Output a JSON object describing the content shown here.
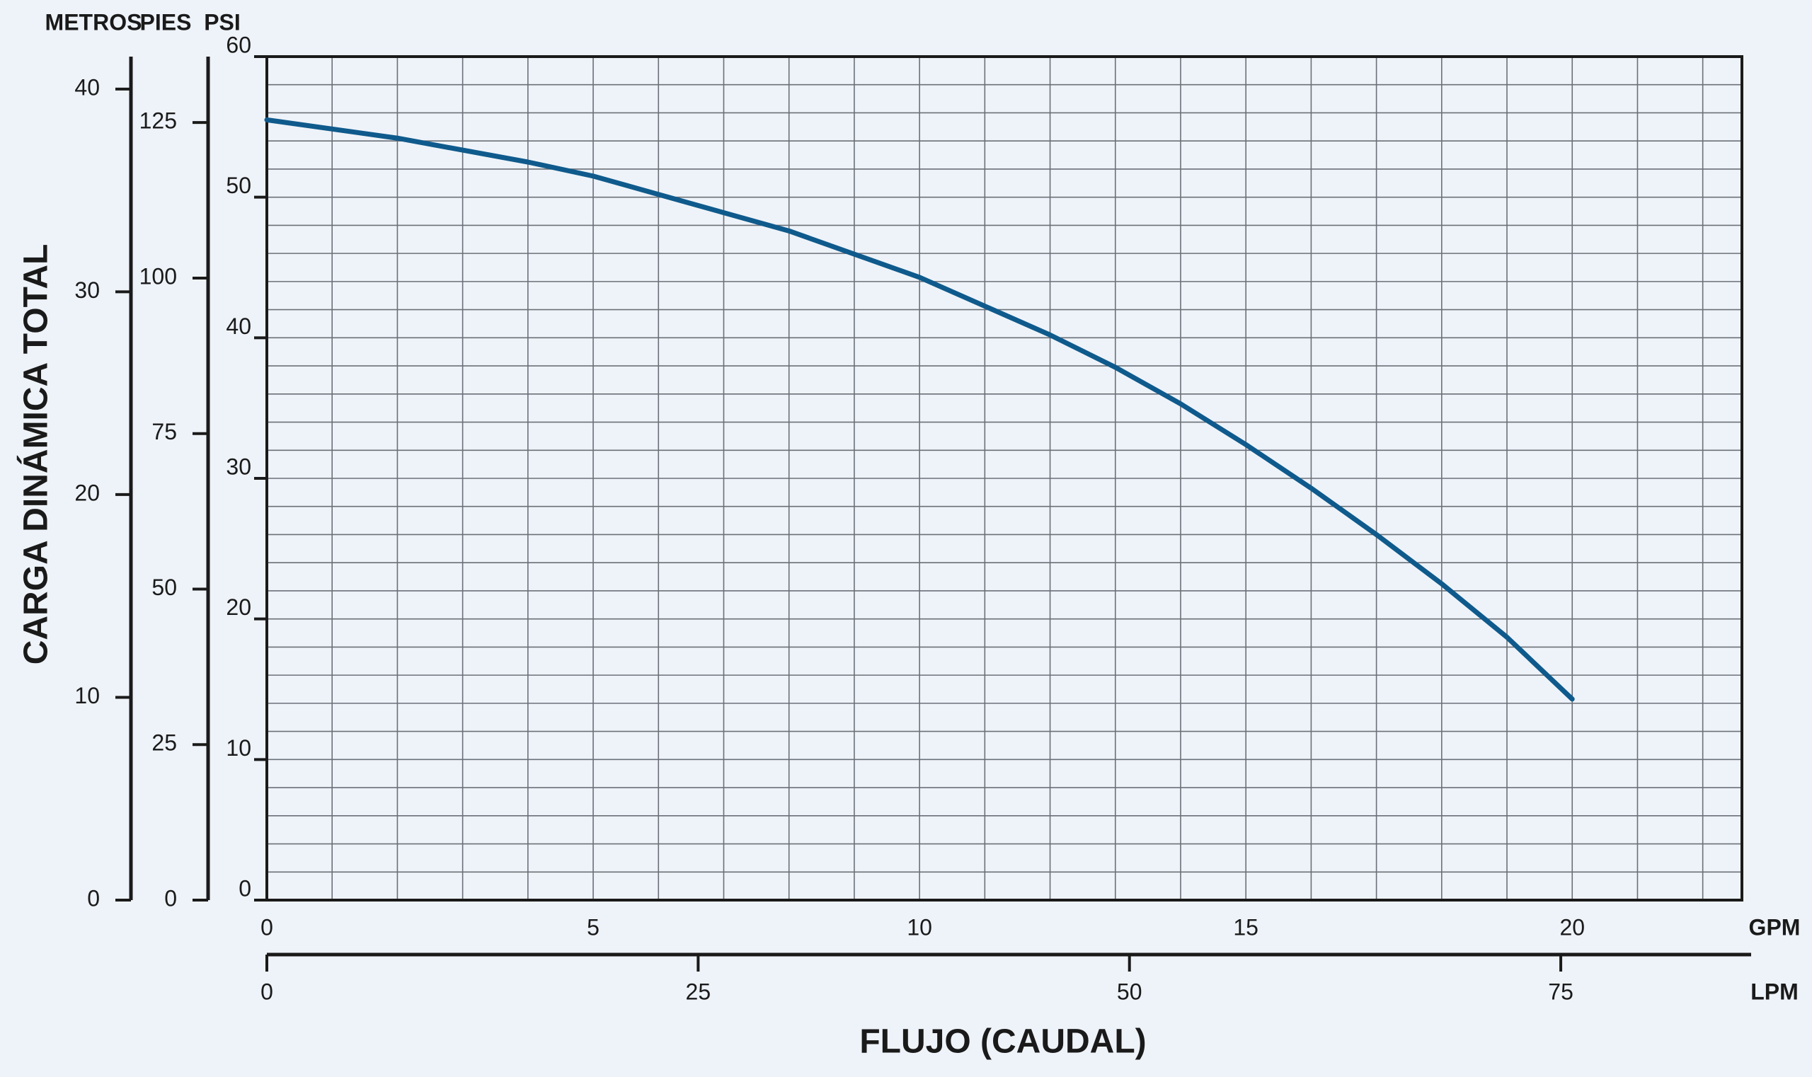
{
  "chart_data": {
    "type": "line",
    "y_title": "CARGA DINÁMICA TOTAL",
    "x_title": "FLUJO (CAUDAL)",
    "x_label": "GPM",
    "x2_label": "LPM",
    "y_label": "PSI",
    "y2_label": "PIES",
    "y3_label": "METROS",
    "x": [
      0,
      2,
      4,
      5,
      6,
      8,
      10,
      12,
      13,
      14,
      15,
      16,
      17,
      18,
      19,
      20
    ],
    "series": [
      {
        "color": "#0f5a8c",
        "values": [
          55.5,
          54.2,
          52.5,
          51.5,
          50.2,
          47.6,
          44.3,
          40.2,
          37.9,
          35.3,
          32.4,
          29.3,
          26.0,
          22.5,
          18.7,
          14.3
        ]
      }
    ],
    "xlim": [
      0,
      22.6
    ],
    "xticks": [
      0,
      5,
      10,
      15,
      20
    ],
    "x2lim": [
      0,
      85.5
    ],
    "x2ticks": [
      0,
      25,
      50,
      75
    ],
    "ylim": [
      0,
      60
    ],
    "yticks": [
      0,
      10,
      20,
      30,
      40,
      50,
      60
    ],
    "y2lim": [
      0,
      135.6
    ],
    "y2ticks": [
      0,
      25,
      50,
      75,
      100,
      125
    ],
    "y3lim": [
      0,
      41.6
    ],
    "y3ticks": [
      0,
      10,
      20,
      30,
      40
    ],
    "grid": true,
    "xgrid": [
      1,
      2,
      3,
      4,
      5,
      6,
      7,
      8,
      9,
      10,
      11,
      12,
      13,
      14,
      15,
      16,
      17,
      18,
      19,
      20,
      21,
      22
    ],
    "ygrid": [
      2,
      4,
      6,
      8,
      10,
      12,
      14,
      16,
      18,
      20,
      22,
      24,
      26,
      28,
      30,
      32,
      34,
      36,
      38,
      40,
      42,
      44,
      46,
      48,
      50,
      52,
      54,
      56,
      58
    ]
  }
}
